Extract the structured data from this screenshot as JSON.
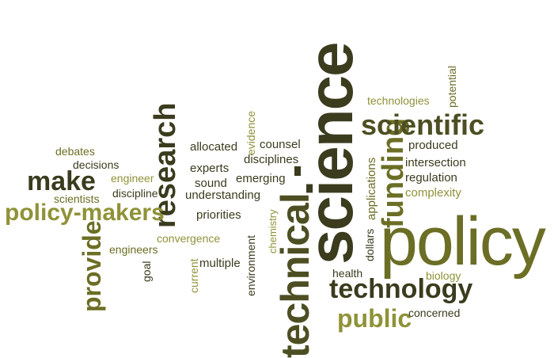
{
  "words": {
    "science": "science",
    "policy": "policy",
    "technical": "technical",
    "technology": "technology",
    "scientific": "scientific",
    "funding": "funding",
    "research": "research",
    "policy_makers": "policy-makers",
    "provide": "provide",
    "make": "make",
    "public": "public",
    "technologies": "technologies",
    "potential": "potential",
    "produced": "produced",
    "intersection": "intersection",
    "regulation": "regulation",
    "complexity": "complexity",
    "applications": "applications",
    "dollars": "dollars",
    "health": "health",
    "biology": "biology",
    "concerned": "concerned",
    "counsel": "counsel",
    "disciplines": "disciplines",
    "emerging": "emerging",
    "evidence": "evidence",
    "chemistry": "chemistry",
    "environment": "environment",
    "allocated": "allocated",
    "experts": "experts",
    "sound": "sound",
    "understanding": "understanding",
    "priorities": "priorities",
    "convergence": "convergence",
    "multiple": "multiple",
    "current": "current",
    "debates": "debates",
    "decisions": "decisions",
    "engineer": "engineer",
    "scientists": "scientists",
    "discipline": "discipline",
    "engineers": "engineers",
    "goal": "goal"
  },
  "colors": {
    "dark_olive": "#3b3b1e",
    "olive": "#6b6e24",
    "light_olive": "#8f9238",
    "pale_olive": "#a4a24a"
  }
}
